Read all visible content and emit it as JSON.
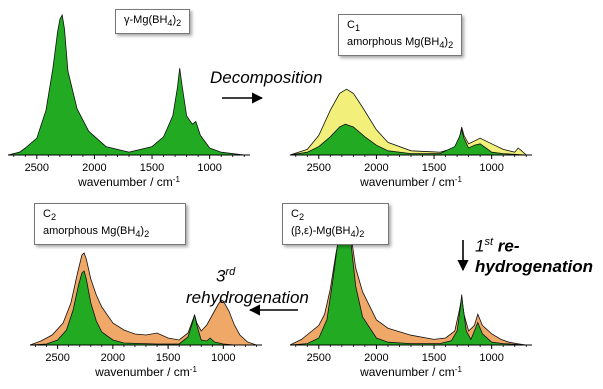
{
  "chart_data": [
    {
      "type": "area",
      "panel": "top-left",
      "label": "γ-Mg(BH4)2",
      "xlabel": "wavenumber / cm-1",
      "xticks": [
        2500,
        2000,
        1500,
        1000
      ],
      "xlim": [
        2750,
        650
      ],
      "series": [
        {
          "color": "#22aa22",
          "x": [
            2750,
            2650,
            2600,
            2500,
            2420,
            2360,
            2320,
            2300,
            2280,
            2260,
            2230,
            2150,
            2050,
            1900,
            1700,
            1500,
            1400,
            1320,
            1280,
            1260,
            1240,
            1200,
            1150,
            1120,
            1080,
            1000,
            900,
            700
          ],
          "y": [
            0.0,
            0.02,
            0.05,
            0.12,
            0.32,
            0.62,
            0.88,
            0.97,
            1.0,
            0.9,
            0.6,
            0.33,
            0.17,
            0.06,
            0.02,
            0.06,
            0.13,
            0.28,
            0.48,
            0.62,
            0.5,
            0.28,
            0.22,
            0.24,
            0.14,
            0.05,
            0.02,
            0.0
          ]
        }
      ]
    },
    {
      "type": "area",
      "panel": "top-right",
      "label": "C1 amorphous Mg(BH4)2",
      "xlabel": "wavenumber / cm-1",
      "xticks": [
        2500,
        2000,
        1500,
        1000
      ],
      "xlim": [
        2750,
        650
      ],
      "series": [
        {
          "color": "#f2f07a",
          "x": [
            2750,
            2600,
            2500,
            2400,
            2320,
            2260,
            2200,
            2120,
            2000,
            1900,
            1700,
            1450,
            1320,
            1280,
            1260,
            1240,
            1200,
            1100,
            1000,
            900,
            800,
            770,
            740,
            700
          ],
          "y": [
            0.0,
            0.04,
            0.14,
            0.32,
            0.44,
            0.47,
            0.44,
            0.34,
            0.18,
            0.09,
            0.03,
            0.02,
            0.05,
            0.12,
            0.2,
            0.14,
            0.08,
            0.12,
            0.08,
            0.04,
            0.02,
            0.05,
            0.03,
            0.0
          ]
        },
        {
          "color": "#22aa22",
          "x": [
            2750,
            2600,
            2500,
            2400,
            2320,
            2270,
            2200,
            2100,
            2000,
            1900,
            1700,
            1450,
            1320,
            1280,
            1260,
            1240,
            1200,
            1150,
            1100,
            1050,
            1000,
            900,
            700
          ],
          "y": [
            0.0,
            0.02,
            0.06,
            0.13,
            0.2,
            0.22,
            0.2,
            0.13,
            0.07,
            0.03,
            0.01,
            0.01,
            0.06,
            0.13,
            0.18,
            0.12,
            0.05,
            0.07,
            0.08,
            0.05,
            0.02,
            0.01,
            0.0
          ]
        }
      ]
    },
    {
      "type": "area",
      "panel": "bottom-left",
      "label": "C2 amorphous Mg(BH4)2",
      "xlabel": "wavenumber / cm-1",
      "xticks": [
        2500,
        2000,
        1500,
        1000
      ],
      "xlim": [
        2750,
        650
      ],
      "series": [
        {
          "color": "#f0a868",
          "x": [
            2750,
            2650,
            2550,
            2450,
            2380,
            2320,
            2280,
            2260,
            2240,
            2200,
            2150,
            2100,
            2000,
            1900,
            1800,
            1700,
            1600,
            1500,
            1400,
            1320,
            1280,
            1260,
            1240,
            1200,
            1150,
            1100,
            1050,
            1020,
            1000,
            950,
            900,
            850,
            780,
            700
          ],
          "y": [
            0.0,
            0.04,
            0.1,
            0.22,
            0.42,
            0.72,
            0.9,
            0.92,
            0.86,
            0.66,
            0.5,
            0.38,
            0.22,
            0.15,
            0.11,
            0.1,
            0.12,
            0.07,
            0.05,
            0.12,
            0.24,
            0.3,
            0.22,
            0.14,
            0.2,
            0.3,
            0.4,
            0.45,
            0.44,
            0.34,
            0.2,
            0.1,
            0.03,
            0.0
          ]
        },
        {
          "color": "#22aa22",
          "x": [
            2750,
            2600,
            2500,
            2420,
            2360,
            2310,
            2280,
            2260,
            2240,
            2200,
            2150,
            2100,
            2000,
            1900,
            1600,
            1400,
            1320,
            1280,
            1260,
            1240,
            1200,
            1150,
            1120,
            1080,
            1000,
            900,
            700
          ],
          "y": [
            0.0,
            0.01,
            0.05,
            0.15,
            0.35,
            0.6,
            0.72,
            0.74,
            0.66,
            0.42,
            0.24,
            0.13,
            0.05,
            0.02,
            0.01,
            0.01,
            0.08,
            0.22,
            0.3,
            0.2,
            0.05,
            0.04,
            0.07,
            0.03,
            0.01,
            0.0,
            0.0
          ]
        }
      ]
    },
    {
      "type": "area",
      "panel": "bottom-right",
      "label": "C2 (β,ε)-Mg(BH4)2",
      "xlabel": "wavenumber / cm-1",
      "xticks": [
        2500,
        2000,
        1500,
        1000
      ],
      "xlim": [
        2750,
        650
      ],
      "series": [
        {
          "color": "#f0a868",
          "x": [
            2750,
            2650,
            2560,
            2500,
            2450,
            2400,
            2350,
            2300,
            2270,
            2250,
            2220,
            2180,
            2120,
            2000,
            1900,
            1700,
            1500,
            1400,
            1320,
            1280,
            1260,
            1240,
            1200,
            1150,
            1120,
            1080,
            1000,
            920,
            850,
            780,
            700
          ],
          "y": [
            0.0,
            0.04,
            0.1,
            0.14,
            0.22,
            0.4,
            0.66,
            0.86,
            0.92,
            0.9,
            0.78,
            0.55,
            0.38,
            0.18,
            0.12,
            0.07,
            0.04,
            0.05,
            0.1,
            0.25,
            0.34,
            0.22,
            0.1,
            0.14,
            0.22,
            0.14,
            0.08,
            0.04,
            0.02,
            0.01,
            0.0
          ]
        },
        {
          "color": "#22aa22",
          "x": [
            2750,
            2600,
            2500,
            2430,
            2380,
            2340,
            2300,
            2270,
            2250,
            2220,
            2180,
            2120,
            2000,
            1900,
            1700,
            1450,
            1350,
            1300,
            1270,
            1260,
            1250,
            1220,
            1180,
            1150,
            1120,
            1080,
            1000,
            900,
            700
          ],
          "y": [
            0.0,
            0.01,
            0.05,
            0.18,
            0.45,
            0.7,
            0.86,
            0.9,
            0.88,
            0.72,
            0.42,
            0.2,
            0.05,
            0.02,
            0.01,
            0.01,
            0.03,
            0.1,
            0.28,
            0.36,
            0.28,
            0.1,
            0.04,
            0.1,
            0.16,
            0.08,
            0.02,
            0.01,
            0.0
          ]
        }
      ]
    }
  ],
  "labels": {
    "tl": {
      "main": "γ-Mg(BH",
      "sub": "4",
      "tail": ")",
      "sub2": "2"
    },
    "tr": {
      "line1": "C",
      "line1_sub": "1",
      "line2": "amorphous Mg(BH",
      "line2_sub": "4",
      "line2_tail": ")",
      "line2_sub2": "2"
    },
    "bl": {
      "line1": "C",
      "line1_sub": "2",
      "line2": "amorphous Mg(BH",
      "line2_sub": "4",
      "line2_tail": ")",
      "line2_sub2": "2"
    },
    "br": {
      "line1": "C",
      "line1_sub": "2",
      "line2": "(β,ε)-Mg(BH",
      "line2_sub": "4",
      "line2_tail": ")",
      "line2_sub2": "2"
    }
  },
  "annotations": {
    "decomposition": "Decomposition",
    "rehydro1_num": "1",
    "rehydro1_sup": "st",
    "rehydro1_a": " re-",
    "rehydro1_b": "hydrogenation",
    "rehydro3_num": "3",
    "rehydro3_sup": "rd",
    "rehydro3_b": "rehydrogenation"
  },
  "axis": {
    "xlabel": "wavenumber / cm",
    "xlabel_sup": "-1"
  }
}
